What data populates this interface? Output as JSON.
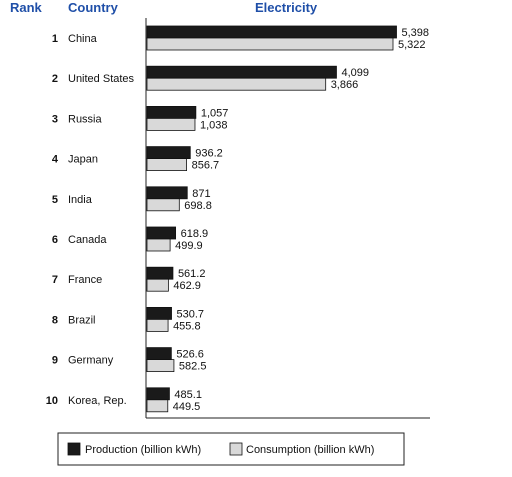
{
  "headers": {
    "rank": "Rank",
    "country": "Country",
    "metric": "Electricity"
  },
  "chart_data": {
    "type": "bar",
    "orientation": "horizontal",
    "title": "Electricity",
    "categories": [
      "China",
      "United States",
      "Russia",
      "Japan",
      "India",
      "Canada",
      "France",
      "Brazil",
      "Germany",
      "Korea, Rep."
    ],
    "ranks": [
      "1",
      "2",
      "3",
      "4",
      "5",
      "6",
      "7",
      "8",
      "9",
      "10"
    ],
    "series": [
      {
        "name": "Production (billion kWh)",
        "color": "#1a1a1a",
        "values": [
          5398,
          4099,
          1057,
          936.2,
          871,
          618.9,
          561.2,
          530.7,
          526.6,
          485.1
        ],
        "labels": [
          "5,398",
          "4,099",
          "1,057",
          "936.2",
          "871",
          "618.9",
          "561.2",
          "530.7",
          "526.6",
          "485.1"
        ]
      },
      {
        "name": "Consumption (billion kWh)",
        "color": "#d9d9d9",
        "values": [
          5322,
          3866,
          1038,
          856.7,
          698.8,
          499.9,
          462.9,
          455.8,
          582.5,
          449.5
        ],
        "labels": [
          "5,322",
          "3,866",
          "1,038",
          "856.7",
          "698.8",
          "499.9",
          "462.9",
          "455.8",
          "582.5",
          "449.5"
        ]
      }
    ],
    "xlim": [
      0,
      6000
    ],
    "grid": false,
    "legend_position": "bottom"
  }
}
